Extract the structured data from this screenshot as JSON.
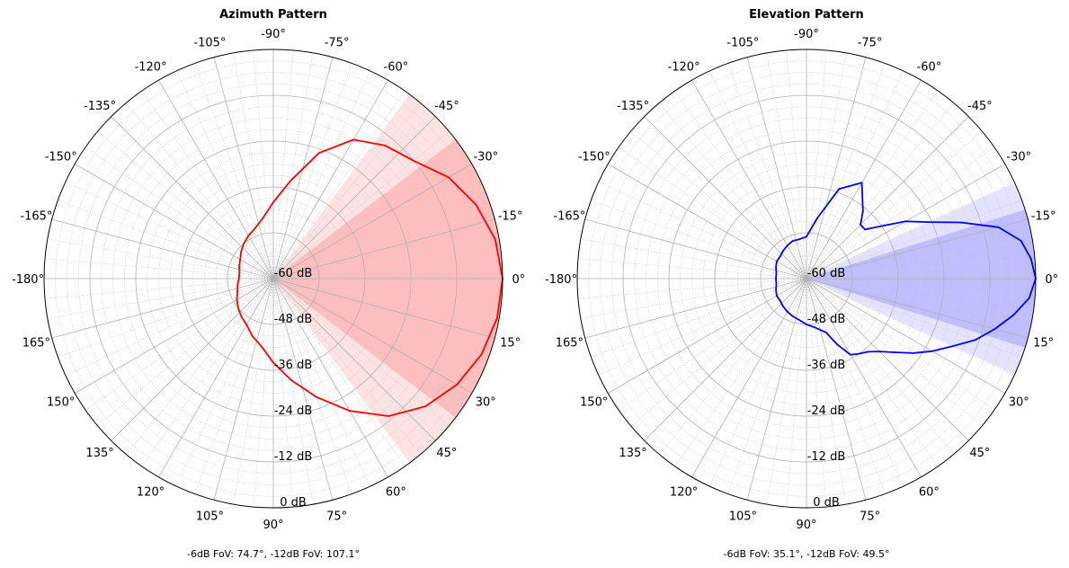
{
  "colors": {
    "azimuth": "#ff0000",
    "elevation": "#0000ff",
    "major_grid": "#b0b0b0",
    "minor_grid": "#cccccc",
    "frame": "#000000"
  },
  "chart_data": [
    {
      "type": "polar-line",
      "title": "Azimuth Pattern",
      "theta_labels": [
        "0°",
        "15°",
        "30°",
        "45°",
        "60°",
        "75°",
        "90°",
        "105°",
        "120°",
        "135°",
        "150°",
        "165°",
        "-180°",
        "-165°",
        "-150°",
        "-135°",
        "-120°",
        "-105°",
        "-90°",
        "-75°",
        "-60°",
        "-45°",
        "-30°",
        "-15°"
      ],
      "r_labels": [
        "-60 dB",
        "-48 dB",
        "-36 dB",
        "-24 dB",
        "-12 dB",
        "0 dB"
      ],
      "r_range_db": [
        -60,
        0
      ],
      "theta_direction": "clockwise, 0° at right",
      "grid": true,
      "series": [
        {
          "color": "#ff0000",
          "theta_deg": [
            0,
            10,
            20,
            30,
            40,
            50,
            60,
            70,
            80,
            90,
            100,
            110,
            120,
            130,
            140,
            150,
            160,
            170,
            180,
            -170,
            -160,
            -150,
            -140,
            -130,
            -120,
            -110,
            -100,
            -90,
            -80,
            -70,
            -60,
            -50,
            -40,
            -30,
            -20,
            -10
          ],
          "r_db": [
            0,
            -0.5,
            -2,
            -4.5,
            -8,
            -13,
            -20,
            -27,
            -33,
            -38,
            -42,
            -44,
            -46,
            -47,
            -48,
            -49,
            -50,
            -50.5,
            -51,
            -51,
            -50.5,
            -50,
            -49,
            -48,
            -47,
            -46,
            -44,
            -40,
            -34,
            -25,
            -18,
            -14.5,
            -12,
            -7,
            -3.5,
            -1
          ]
        }
      ],
      "fov_bands": [
        {
          "label": "-6dB",
          "fov_deg": 74.7
        },
        {
          "label": "-12dB",
          "fov_deg": 107.1
        }
      ],
      "caption": "-6dB FoV: 74.7°, -12dB FoV: 107.1°"
    },
    {
      "type": "polar-line",
      "title": "Elevation Pattern",
      "theta_labels": [
        "0°",
        "15°",
        "30°",
        "45°",
        "60°",
        "75°",
        "90°",
        "105°",
        "120°",
        "135°",
        "150°",
        "165°",
        "-180°",
        "-165°",
        "-150°",
        "-135°",
        "-120°",
        "-105°",
        "-90°",
        "-75°",
        "-60°",
        "-45°",
        "-30°",
        "-15°"
      ],
      "r_labels": [
        "-60 dB",
        "-48 dB",
        "-36 dB",
        "-24 dB",
        "-12 dB",
        "0 dB"
      ],
      "r_range_db": [
        -60,
        0
      ],
      "theta_direction": "clockwise, 0° at right",
      "grid": true,
      "series": [
        {
          "color": "#0000ff",
          "theta_deg": [
            0,
            5,
            10,
            15,
            20,
            25,
            30,
            35,
            40,
            45,
            50,
            55,
            60,
            65,
            70,
            80,
            90,
            100,
            110,
            120,
            130,
            140,
            150,
            160,
            170,
            180,
            -170,
            -160,
            -150,
            -140,
            -130,
            -120,
            -110,
            -100,
            -90,
            -80,
            -70,
            -60,
            -50,
            -45,
            -40,
            -35,
            -30,
            -25,
            -20,
            -15,
            -10,
            -5
          ],
          "r_db": [
            0,
            -1.5,
            -5,
            -9,
            -13,
            -18,
            -22,
            -26,
            -30,
            -33,
            -35,
            -36,
            -37,
            -41,
            -45,
            -47,
            -48,
            -49,
            -49.5,
            -50,
            -50.5,
            -51,
            -51,
            -51.5,
            -52,
            -52,
            -52,
            -51.5,
            -51,
            -51,
            -50.5,
            -50,
            -49.5,
            -49.5,
            -49,
            -44,
            -35,
            -31,
            -37,
            -40,
            -40,
            -36,
            -30,
            -25,
            -17,
            -8,
            -3,
            -1
          ]
        }
      ],
      "fov_bands": [
        {
          "label": "-6dB",
          "fov_deg": 35.1
        },
        {
          "label": "-12dB",
          "fov_deg": 49.5
        }
      ],
      "caption": "-6dB FoV: 35.1°, -12dB FoV: 49.5°"
    }
  ]
}
